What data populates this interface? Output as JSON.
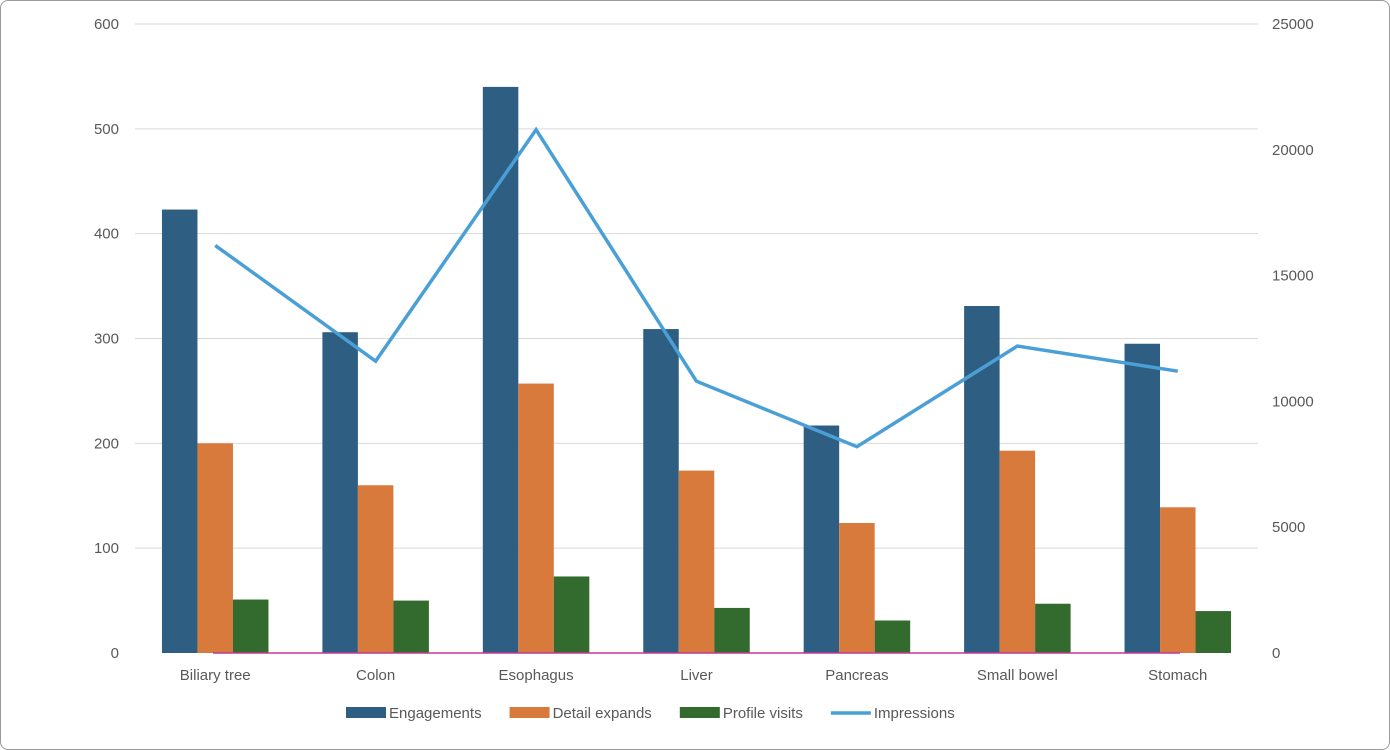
{
  "chart_data": {
    "type": "bar",
    "categories": [
      "Biliary tree",
      "Colon",
      "Esophagus",
      "Liver",
      "Pancreas",
      "Small bowel",
      "Stomach"
    ],
    "series": [
      {
        "name": "Engagements",
        "type": "bar",
        "axis": "left",
        "color": "#2e5f82",
        "values": [
          423,
          306,
          540,
          309,
          217,
          331,
          295
        ]
      },
      {
        "name": "Detail expands",
        "type": "bar",
        "axis": "left",
        "color": "#d97a3d",
        "values": [
          200,
          160,
          257,
          174,
          124,
          193,
          139
        ]
      },
      {
        "name": "Profile visits",
        "type": "bar",
        "axis": "left",
        "color": "#336b2e",
        "values": [
          51,
          50,
          73,
          43,
          31,
          47,
          40
        ]
      },
      {
        "name": "Impressions",
        "type": "line",
        "axis": "right",
        "color": "#4aa0d6",
        "values": [
          16200,
          11600,
          20800,
          10800,
          8200,
          12200,
          11200
        ]
      }
    ],
    "y_left": {
      "min": 0,
      "max": 600,
      "ticks": [
        "0",
        "100",
        "200",
        "300",
        "400",
        "500",
        "600"
      ]
    },
    "y_right": {
      "min": 0,
      "max": 25000,
      "ticks": [
        "0",
        "5000",
        "10000",
        "15000",
        "20000",
        "25000"
      ]
    },
    "grid": true,
    "legend_position": "bottom",
    "baseline_color": "#c0399a"
  }
}
